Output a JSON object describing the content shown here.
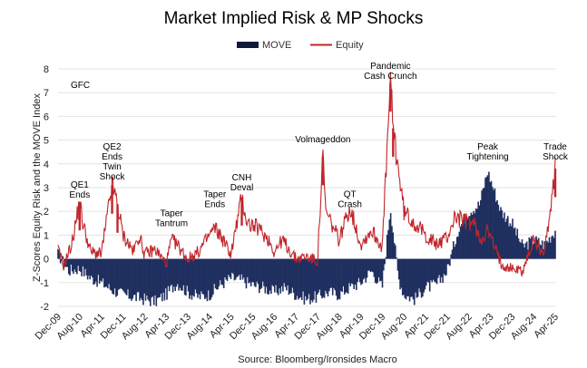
{
  "chart_data": {
    "type": "area",
    "title": "Market Implied Risk & MP Shocks",
    "ylabel": "Z-Scores Equity Risk and the MOVE Index",
    "xlabel": "",
    "source": "Source: Bloomberg/Ironsides Macro",
    "ylim": [
      -2,
      8
    ],
    "yticks": [
      "-2",
      "-1",
      "0",
      "1",
      "2",
      "3",
      "4",
      "5",
      "6",
      "7",
      "8"
    ],
    "grid": true,
    "legend_position": "top-center",
    "x_start": "Dec-09",
    "x_end": "Apr-25",
    "x_tick_labels": [
      "Dec-09",
      "Aug-10",
      "Apr-11",
      "Dec-11",
      "Aug-12",
      "Apr-13",
      "Dec-13",
      "Aug-14",
      "Apr-15",
      "Dec-15",
      "Aug-16",
      "Apr-17",
      "Dec-17",
      "Aug-18",
      "Apr-19",
      "Dec-19",
      "Aug-20",
      "Apr-21",
      "Dec-21",
      "Aug-22",
      "Apr-23",
      "Dec-23",
      "Aug-24",
      "Apr-25"
    ],
    "series": [
      {
        "name": "MOVE",
        "style": "area",
        "color": "#1f2f5f",
        "points": [
          [
            "Dec-09",
            0.2
          ],
          [
            "Apr-10",
            -0.5
          ],
          [
            "Aug-10",
            -0.4
          ],
          [
            "Dec-10",
            -0.8
          ],
          [
            "Apr-11",
            -1.0
          ],
          [
            "Aug-11",
            -1.3
          ],
          [
            "Dec-11",
            -1.5
          ],
          [
            "Apr-12",
            -1.6
          ],
          [
            "Aug-12",
            -1.7
          ],
          [
            "Dec-12",
            -1.8
          ],
          [
            "Apr-13",
            -1.5
          ],
          [
            "Aug-13",
            -1.0
          ],
          [
            "Dec-13",
            -1.4
          ],
          [
            "Apr-14",
            -1.6
          ],
          [
            "Aug-14",
            -1.5
          ],
          [
            "Dec-14",
            -1.1
          ],
          [
            "Apr-15",
            -0.8
          ],
          [
            "Aug-15",
            -0.9
          ],
          [
            "Dec-15",
            -1.1
          ],
          [
            "Apr-16",
            -1.2
          ],
          [
            "Aug-16",
            -1.4
          ],
          [
            "Dec-16",
            -1.2
          ],
          [
            "Apr-17",
            -1.5
          ],
          [
            "Aug-17",
            -1.7
          ],
          [
            "Dec-17",
            -1.6
          ],
          [
            "Apr-18",
            -1.4
          ],
          [
            "Aug-18",
            -1.5
          ],
          [
            "Dec-18",
            -1.2
          ],
          [
            "Apr-19",
            -1.0
          ],
          [
            "Aug-19",
            -0.5
          ],
          [
            "Dec-19",
            -1.2
          ],
          [
            "Mar-20",
            2.2
          ],
          [
            "Jun-20",
            -0.8
          ],
          [
            "Aug-20",
            -1.5
          ],
          [
            "Dec-20",
            -1.7
          ],
          [
            "Apr-21",
            -1.2
          ],
          [
            "Aug-21",
            -1.1
          ],
          [
            "Dec-21",
            -0.5
          ],
          [
            "Apr-22",
            1.2
          ],
          [
            "Aug-22",
            2.0
          ],
          [
            "Dec-22",
            2.3
          ],
          [
            "Mar-23",
            3.7
          ],
          [
            "Aug-23",
            2.0
          ],
          [
            "Dec-23",
            1.5
          ],
          [
            "Apr-24",
            0.5
          ],
          [
            "Aug-24",
            0.8
          ],
          [
            "Dec-24",
            0.6
          ],
          [
            "Apr-25",
            1.2
          ]
        ]
      },
      {
        "name": "Equity",
        "style": "line",
        "color": "#c0252b",
        "points": [
          [
            "Dec-09",
            0.4
          ],
          [
            "Feb-10",
            -0.3
          ],
          [
            "May-10",
            0.6
          ],
          [
            "Aug-10",
            2.4
          ],
          [
            "Sep-10",
            1.6
          ],
          [
            "Dec-10",
            0.3
          ],
          [
            "Apr-11",
            0.2
          ],
          [
            "Aug-11",
            3.1
          ],
          [
            "Oct-11",
            2.3
          ],
          [
            "Dec-11",
            1.0
          ],
          [
            "Apr-12",
            0.3
          ],
          [
            "Jun-12",
            1.0
          ],
          [
            "Aug-12",
            0.2
          ],
          [
            "Dec-12",
            0.4
          ],
          [
            "Apr-13",
            -0.2
          ],
          [
            "Jun-13",
            0.8
          ],
          [
            "Aug-13",
            0.6
          ],
          [
            "Dec-13",
            0.0
          ],
          [
            "Apr-14",
            0.3
          ],
          [
            "Aug-14",
            1.0
          ],
          [
            "Oct-14",
            1.3
          ],
          [
            "Dec-14",
            1.0
          ],
          [
            "Apr-15",
            0.2
          ],
          [
            "Aug-15",
            2.6
          ],
          [
            "Oct-15",
            1.5
          ],
          [
            "Feb-16",
            1.3
          ],
          [
            "Jun-16",
            0.8
          ],
          [
            "Aug-16",
            0.3
          ],
          [
            "Nov-16",
            0.8
          ],
          [
            "Apr-17",
            0.0
          ],
          [
            "Aug-17",
            0.1
          ],
          [
            "Dec-17",
            -0.1
          ],
          [
            "Feb-18",
            4.3
          ],
          [
            "Mar-18",
            2.0
          ],
          [
            "Aug-18",
            0.8
          ],
          [
            "Dec-18",
            2.2
          ],
          [
            "Apr-19",
            0.6
          ],
          [
            "Aug-19",
            1.2
          ],
          [
            "Dec-19",
            0.5
          ],
          [
            "Mar-20",
            7.4
          ],
          [
            "Apr-20",
            5.5
          ],
          [
            "Aug-20",
            2.0
          ],
          [
            "Dec-20",
            1.5
          ],
          [
            "Apr-21",
            1.0
          ],
          [
            "Aug-21",
            0.6
          ],
          [
            "Dec-21",
            0.9
          ],
          [
            "Mar-22",
            1.8
          ],
          [
            "Jun-22",
            1.6
          ],
          [
            "Oct-22",
            1.5
          ],
          [
            "Dec-22",
            0.8
          ],
          [
            "Mar-23",
            1.2
          ],
          [
            "Aug-23",
            -0.2
          ],
          [
            "Dec-23",
            -0.4
          ],
          [
            "Apr-24",
            -0.5
          ],
          [
            "Aug-24",
            0.8
          ],
          [
            "Dec-24",
            0.2
          ],
          [
            "Apr-25",
            3.8
          ]
        ]
      }
    ],
    "annotations": [
      {
        "lines": [
          "GFC"
        ],
        "date": "Dec-09",
        "y": 7.2
      },
      {
        "lines": [
          "QE1",
          "Ends"
        ],
        "date": "Aug-10",
        "y": 3.0
      },
      {
        "lines": [
          "QE2",
          "Ends",
          "Twin",
          "Shock"
        ],
        "date": "Aug-11",
        "y": 4.6
      },
      {
        "lines": [
          "Taper",
          "Tantrum"
        ],
        "date": "Jun-13",
        "y": 1.8
      },
      {
        "lines": [
          "Taper",
          "Ends"
        ],
        "date": "Oct-14",
        "y": 2.6
      },
      {
        "lines": [
          "CNH",
          "Deval"
        ],
        "date": "Aug-15",
        "y": 3.3
      },
      {
        "lines": [
          "Volmageddon"
        ],
        "date": "Feb-18",
        "y": 4.9
      },
      {
        "lines": [
          "QT",
          "Crash"
        ],
        "date": "Dec-18",
        "y": 2.6
      },
      {
        "lines": [
          "Pandemic",
          "Cash Crunch"
        ],
        "date": "Mar-20",
        "y": 8.0
      },
      {
        "lines": [
          "Peak",
          "Tightening"
        ],
        "date": "Mar-23",
        "y": 4.6
      },
      {
        "lines": [
          "Trade",
          "Shock"
        ],
        "date": "Apr-25",
        "y": 4.6
      }
    ]
  }
}
